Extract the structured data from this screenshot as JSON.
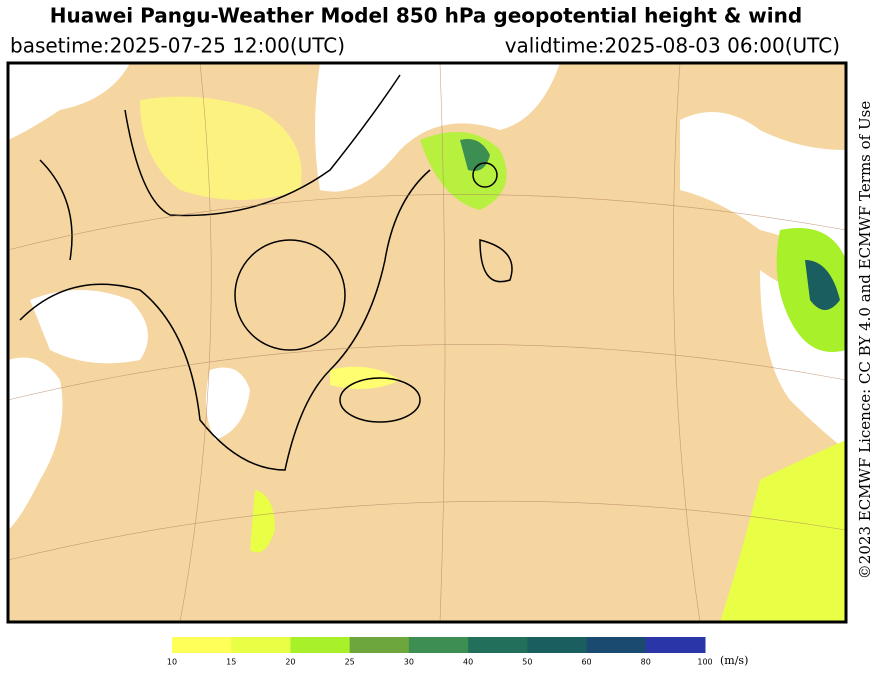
{
  "header": {
    "title": "Huawei Pangu-Weather Model 850 hPa geopotential height & wind",
    "basetime": "basetime:2025-07-25 12:00(UTC)",
    "validtime": "validtime:2025-08-03 06:00(UTC)"
  },
  "licence": "©2023 ECMWF Licence: CC BY 4.0 and ECMWF Terms of Use",
  "colorbar": {
    "ticks": [
      10,
      15,
      20,
      25,
      30,
      40,
      50,
      60,
      80,
      100
    ],
    "colors": [
      "#ffff5a",
      "#e8ff45",
      "#a8f02a",
      "#6ca63c",
      "#3d8e52",
      "#22705c",
      "#1b5e60",
      "#1b4a70",
      "#2a36a8"
    ],
    "unit": "(m/s)"
  }
}
